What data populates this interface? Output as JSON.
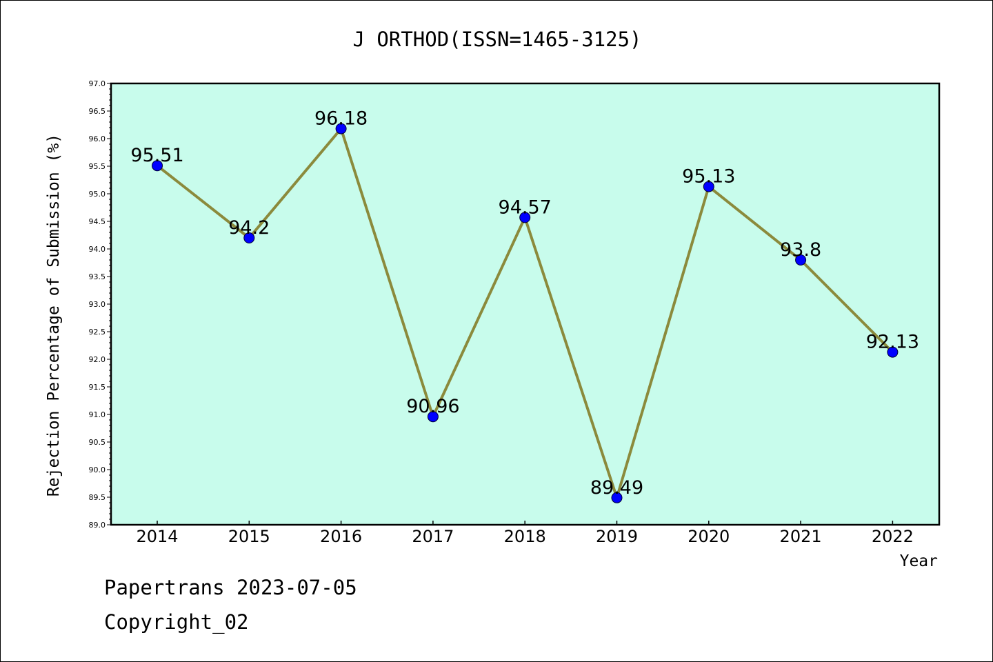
{
  "chart_data": {
    "type": "line",
    "title": "J ORTHOD(ISSN=1465-3125)",
    "xlabel": "Year",
    "ylabel": "Rejection Percentage of Submission (%)",
    "categories": [
      "2014",
      "2015",
      "2016",
      "2017",
      "2018",
      "2019",
      "2020",
      "2021",
      "2022"
    ],
    "values": [
      95.51,
      94.2,
      96.18,
      90.96,
      94.57,
      89.49,
      95.13,
      93.8,
      92.13
    ],
    "data_labels": [
      "95.51",
      "94.2",
      "96.18",
      "90.96",
      "94.57",
      "89.49",
      "95.13",
      "93.8",
      "92.13"
    ],
    "ylim": [
      89.0,
      97.0
    ],
    "yticks": [
      "89.0",
      "89.5",
      "90.0",
      "90.5",
      "91.0",
      "91.5",
      "92.0",
      "92.5",
      "93.0",
      "93.5",
      "94.0",
      "94.5",
      "95.0",
      "95.5",
      "96.0",
      "96.5",
      "97.0"
    ],
    "grid": false,
    "colors": {
      "plot_background": "#c8fcec",
      "line": "#8b8a3c",
      "marker": "#0000ff",
      "axis": "#000000"
    }
  },
  "footer": {
    "line1": "Papertrans 2023-07-05",
    "line2": "Copyright_02"
  }
}
